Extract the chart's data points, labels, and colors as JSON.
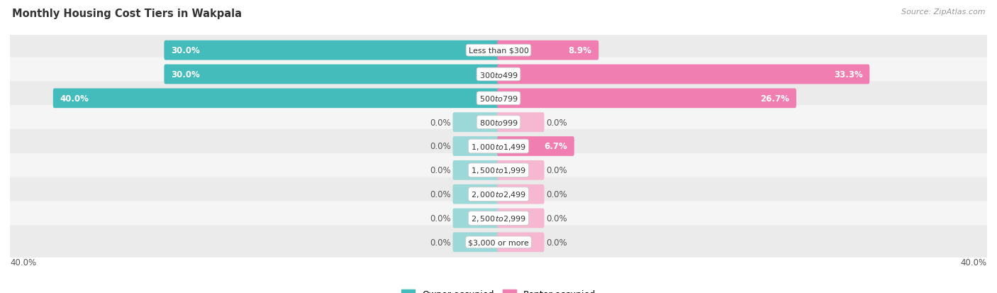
{
  "title": "Monthly Housing Cost Tiers in Wakpala",
  "source": "Source: ZipAtlas.com",
  "categories": [
    "Less than $300",
    "$300 to $499",
    "$500 to $799",
    "$800 to $999",
    "$1,000 to $1,499",
    "$1,500 to $1,999",
    "$2,000 to $2,499",
    "$2,500 to $2,999",
    "$3,000 or more"
  ],
  "owner_values": [
    30.0,
    30.0,
    40.0,
    0.0,
    0.0,
    0.0,
    0.0,
    0.0,
    0.0
  ],
  "renter_values": [
    8.9,
    33.3,
    26.7,
    0.0,
    6.7,
    0.0,
    0.0,
    0.0,
    0.0
  ],
  "owner_color": "#45BCBC",
  "renter_color": "#F07EB0",
  "owner_color_zero": "#9DD8D8",
  "renter_color_zero": "#F5B8D0",
  "max_value": 40.0,
  "zero_stub": 4.0,
  "title_fontsize": 10.5,
  "label_fontsize": 8.0,
  "annotation_fontsize": 8.5,
  "legend_fontsize": 9,
  "footer_fontsize": 8.5,
  "source_fontsize": 8
}
